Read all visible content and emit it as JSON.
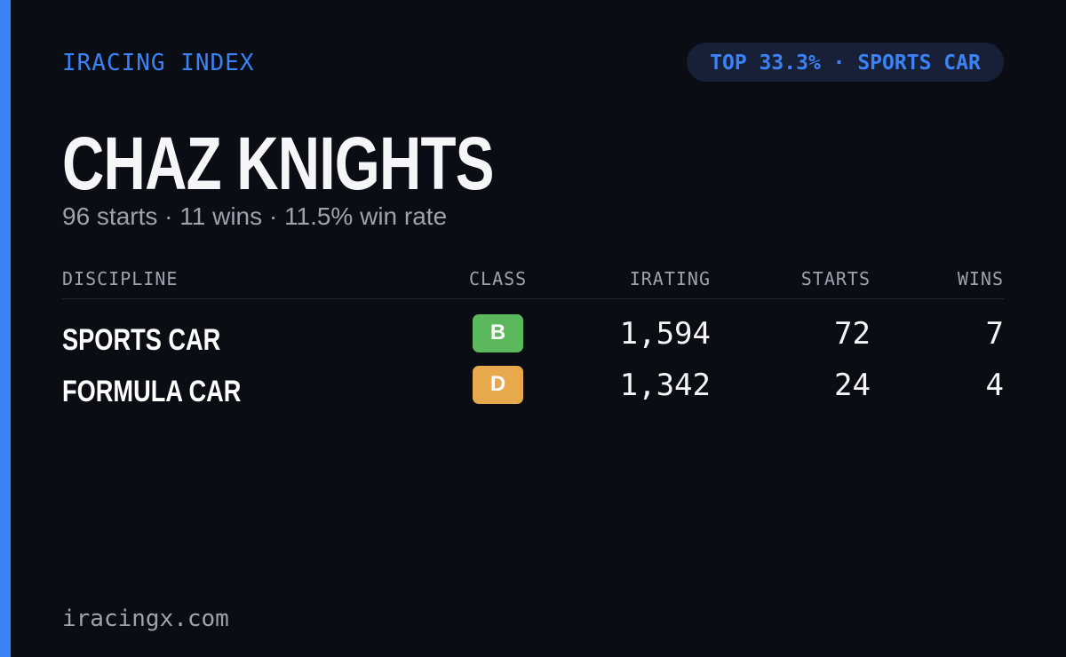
{
  "header": {
    "brand": "IRACING INDEX",
    "badge": "TOP 33.3% · SPORTS CAR"
  },
  "title": "CHAZ KNIGHTS",
  "subtitle": "96 starts · 11 wins · 11.5% win rate",
  "table": {
    "columns": [
      "DISCIPLINE",
      "CLASS",
      "IRATING",
      "STARTS",
      "WINS"
    ],
    "rows": [
      [
        "SPORTS CAR",
        "B",
        "1,594",
        "72",
        "7"
      ],
      [
        "FORMULA CAR",
        "D",
        "1,342",
        "24",
        "4"
      ]
    ]
  },
  "footer": "iracingx.com"
}
